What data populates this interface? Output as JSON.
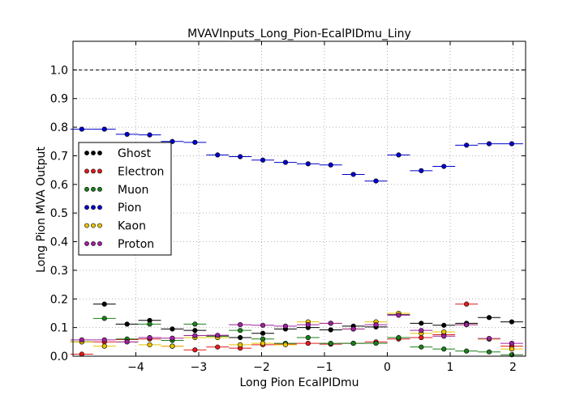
{
  "chart_data": {
    "type": "scatter",
    "title": "MVAVInputs_Long_Pion-EcalPIDmu_Liny",
    "xlabel": "Long Pion EcalPIDmu",
    "ylabel": "Long Pion MVA Output",
    "xlim": [
      -5.0,
      2.2
    ],
    "ylim": [
      0.0,
      1.1
    ],
    "x_ticks": [
      -4,
      -3,
      -2,
      -1,
      0,
      1,
      2
    ],
    "x_tick_labels": [
      "−4",
      "−3",
      "−2",
      "−1",
      "0",
      "1",
      "2"
    ],
    "y_ticks": [
      0.0,
      0.1,
      0.2,
      0.3,
      0.4,
      0.5,
      0.6,
      0.7,
      0.8,
      0.9,
      1.0
    ],
    "y_tick_labels": [
      "0.0",
      "0.1",
      "0.2",
      "0.3",
      "0.4",
      "0.5",
      "0.6",
      "0.7",
      "0.8",
      "0.9",
      "1.0"
    ],
    "grid": true,
    "reference_line": 1.0,
    "legend_position": "center-left",
    "x": [
      -4.86,
      -4.5,
      -4.14,
      -3.78,
      -3.42,
      -3.06,
      -2.7,
      -2.34,
      -1.98,
      -1.62,
      -1.26,
      -0.9,
      -0.54,
      -0.18,
      0.18,
      0.54,
      0.9,
      1.26,
      1.62,
      1.98
    ],
    "x_err": 0.18,
    "series": [
      {
        "name": "Ghost",
        "color": "#000000",
        "values": [
          0.05,
          0.182,
          0.112,
          0.125,
          0.095,
          0.09,
          0.07,
          0.065,
          0.08,
          0.095,
          0.1,
          0.092,
          0.105,
          0.102,
          0.145,
          0.115,
          0.108,
          0.115,
          0.135,
          0.12
        ]
      },
      {
        "name": "Electron",
        "color": "#e31a1c",
        "values": [
          0.007,
          0.05,
          0.058,
          0.06,
          0.035,
          0.022,
          0.032,
          0.028,
          0.04,
          0.042,
          0.045,
          0.042,
          0.045,
          0.05,
          0.06,
          0.065,
          0.075,
          0.182,
          0.06,
          0.035
        ]
      },
      {
        "name": "Muon",
        "color": "#1a7f1a",
        "values": [
          0.05,
          0.132,
          0.06,
          0.112,
          0.055,
          0.112,
          0.07,
          0.09,
          0.06,
          0.045,
          0.065,
          0.045,
          0.045,
          0.045,
          0.065,
          0.032,
          0.025,
          0.018,
          0.015,
          0.005
        ]
      },
      {
        "name": "Pion",
        "color": "#0000cc",
        "values": [
          0.793,
          0.793,
          0.775,
          0.773,
          0.75,
          0.747,
          0.703,
          0.697,
          0.685,
          0.677,
          0.672,
          0.668,
          0.635,
          0.612,
          0.703,
          0.648,
          0.663,
          0.737,
          0.742,
          0.742
        ]
      },
      {
        "name": "Kaon",
        "color": "#e8c400",
        "values": [
          0.05,
          0.035,
          0.05,
          0.04,
          0.035,
          0.065,
          0.065,
          0.04,
          0.045,
          0.04,
          0.12,
          0.115,
          0.095,
          0.12,
          0.15,
          0.08,
          0.085,
          0.11,
          0.06,
          0.025
        ]
      },
      {
        "name": "Proton",
        "color": "#a020a0",
        "values": [
          0.057,
          0.057,
          0.05,
          0.065,
          0.063,
          0.072,
          0.073,
          0.11,
          0.108,
          0.105,
          0.11,
          0.115,
          0.095,
          0.11,
          0.143,
          0.09,
          0.07,
          0.11,
          0.062,
          0.045
        ]
      }
    ]
  }
}
